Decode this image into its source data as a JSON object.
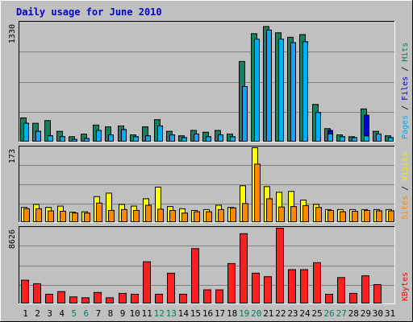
{
  "chart_data": {
    "type": "bar",
    "title": "Daily usage for June 2010",
    "x": [
      "1",
      "2",
      "3",
      "4",
      "5",
      "6",
      "7",
      "8",
      "9",
      "10",
      "11",
      "12",
      "13",
      "14",
      "15",
      "16",
      "17",
      "18",
      "19",
      "20",
      "21",
      "22",
      "23",
      "24",
      "25",
      "26",
      "27",
      "28",
      "29",
      "30",
      "31"
    ],
    "weekend_days": [
      "5",
      "6",
      "12",
      "13",
      "19",
      "20",
      "26",
      "27"
    ],
    "panels": [
      {
        "name": "hits",
        "max_label": "1330",
        "ylim": [
          0,
          1330
        ],
        "right_label": [
          {
            "text": "Pages",
            "color": "#00aaff"
          },
          {
            "text": " / ",
            "color": "#000000"
          },
          {
            "text": "Files",
            "color": "#0000cc"
          },
          {
            "text": " / ",
            "color": "#000000"
          },
          {
            "text": "Hits",
            "color": "#008060"
          }
        ],
        "series": [
          {
            "name": "Hits",
            "color": "#148060",
            "values": [
              270,
              210,
              240,
              120,
              60,
              90,
              190,
              170,
              180,
              80,
              170,
              250,
              120,
              70,
              130,
              110,
              130,
              90,
              900,
              1210,
              1290,
              1220,
              1170,
              1200,
              420,
              150,
              80,
              60,
              370,
              120,
              70
            ]
          },
          {
            "name": "Files",
            "color": "#0000cc",
            "values": [
              210,
              120,
              70,
              60,
              30,
              40,
              130,
              80,
              140,
              60,
              70,
              180,
              80,
              50,
              90,
              60,
              80,
              60,
              620,
              1150,
              1250,
              1150,
              1110,
              1120,
              330,
              130,
              60,
              50,
              300,
              90,
              50
            ]
          },
          {
            "name": "Pages",
            "color": "#00aaff",
            "values": [
              210,
              120,
              70,
              60,
              30,
              40,
              130,
              80,
              140,
              60,
              70,
              180,
              80,
              50,
              90,
              60,
              80,
              60,
              620,
              1150,
              1250,
              1150,
              1110,
              1120,
              330,
              90,
              60,
              50,
              70,
              90,
              50
            ]
          }
        ]
      },
      {
        "name": "visits",
        "max_label": "173",
        "ylim": [
          0,
          173
        ],
        "right_label": [
          {
            "text": "Sites",
            "color": "#ff8800"
          },
          {
            "text": " / ",
            "color": "#000000"
          },
          {
            "text": "Visits",
            "color": "#eeee00"
          }
        ],
        "series": [
          {
            "name": "Visits",
            "color": "#ffff00",
            "values": [
              35,
              42,
              35,
              38,
              24,
              25,
              60,
              68,
              42,
              38,
              55,
              82,
              37,
              32,
              28,
              30,
              40,
              35,
              85,
              173,
              83,
              70,
              72,
              52,
              42,
              30,
              30,
              30,
              30,
              30,
              30
            ]
          },
          {
            "name": "Sites",
            "color": "#ff8800",
            "values": [
              32,
              32,
              27,
              26,
              22,
              22,
              45,
              28,
              30,
              28,
              40,
              31,
              28,
              22,
              25,
              25,
              30,
              34,
              44,
              135,
              55,
              36,
              37,
              39,
              35,
              28,
              25,
              26,
              28,
              27,
              27
            ]
          }
        ]
      },
      {
        "name": "kbytes",
        "max_label": "8626",
        "ylim": [
          0,
          8626
        ],
        "right_label": [
          {
            "text": "KBytes",
            "color": "#ff0000"
          }
        ],
        "series": [
          {
            "name": "KBytes",
            "color": "#ff2020",
            "values": [
              2700,
              2300,
              1100,
              1400,
              800,
              700,
              1300,
              700,
              1200,
              1100,
              4800,
              1100,
              3500,
              1100,
              6300,
              1600,
              1600,
              4600,
              8000,
              3500,
              3100,
              8626,
              3900,
              3900,
              4700,
              1100,
              3000,
              1200,
              3200,
              2200,
              0
            ]
          }
        ]
      }
    ]
  }
}
